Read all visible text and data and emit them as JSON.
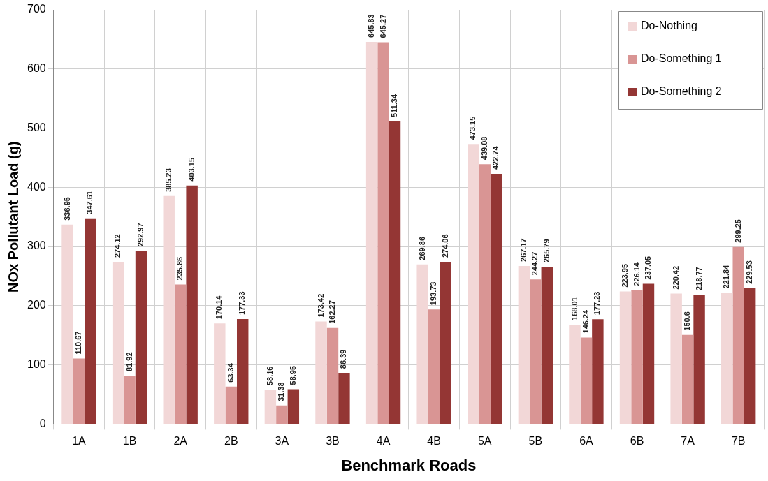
{
  "chart_data": {
    "type": "bar",
    "xlabel": "Benchmark Roads",
    "ylabel": "NOx Pollutant Load (g)",
    "categories": [
      "1A",
      "1B",
      "2A",
      "2B",
      "3A",
      "3B",
      "4A",
      "4B",
      "5A",
      "5B",
      "6A",
      "6B",
      "7A",
      "7B"
    ],
    "series": [
      {
        "name": "Do-Nothing",
        "color": "#f2d7d7",
        "values": [
          336.95,
          274.12,
          385.23,
          170.14,
          58.16,
          173.42,
          645.83,
          269.86,
          473.15,
          267.17,
          168.01,
          223.95,
          220.42,
          221.84
        ]
      },
      {
        "name": "Do-Something 1",
        "color": "#d99594",
        "values": [
          110.67,
          81.92,
          235.86,
          63.34,
          31.38,
          162.27,
          645.27,
          193.73,
          439.08,
          244.27,
          146.24,
          226.14,
          150.6,
          299.25
        ]
      },
      {
        "name": "Do-Something 2",
        "color": "#943634",
        "values": [
          347.61,
          292.97,
          403.15,
          177.33,
          58.95,
          86.39,
          511.34,
          274.06,
          422.74,
          265.79,
          177.23,
          237.05,
          218.77,
          229.53
        ]
      }
    ],
    "ylim": [
      0,
      700
    ],
    "yticks": [
      0,
      100,
      200,
      300,
      400,
      500,
      600,
      700
    ],
    "grid": true,
    "legend": "top right",
    "data_labels": true
  }
}
